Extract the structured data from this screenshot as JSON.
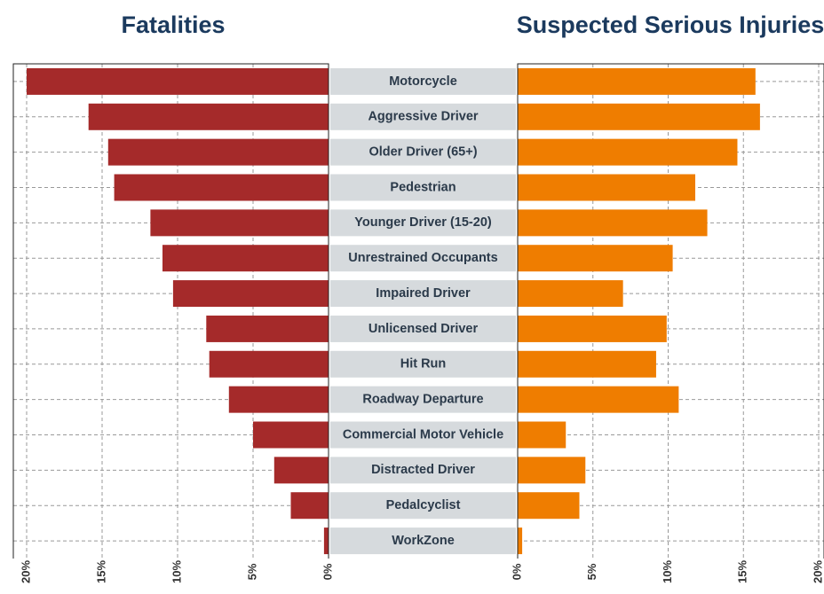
{
  "chart_data": {
    "type": "butterfly",
    "categories": [
      "Motorcycle",
      "Aggressive Driver",
      "Older Driver (65+)",
      "Pedestrian",
      "Younger Driver (15-20)",
      "Unrestrained Occupants",
      "Impaired Driver",
      "Unlicensed Driver",
      "Hit Run",
      "Roadway Departure",
      "Commercial Motor Vehicle",
      "Distracted Driver",
      "Pedalcyclist",
      "WorkZone"
    ],
    "series": [
      {
        "name": "Fatalities",
        "color": "#a52a2a",
        "values": [
          20.0,
          15.9,
          14.6,
          14.2,
          11.8,
          11.0,
          10.3,
          8.1,
          7.9,
          6.6,
          5.0,
          3.6,
          2.5,
          0.3
        ]
      },
      {
        "name": "Suspected Serious Injuries",
        "color": "#ef7d00",
        "values": [
          15.8,
          16.1,
          14.6,
          11.8,
          12.6,
          10.3,
          7.0,
          9.9,
          9.2,
          10.7,
          3.2,
          4.5,
          4.1,
          0.3
        ]
      }
    ],
    "xlim": [
      0,
      20
    ],
    "xticks": [
      {
        "value": 0,
        "label": "0%"
      },
      {
        "value": 5,
        "label": "5%"
      },
      {
        "value": 10,
        "label": "10%"
      },
      {
        "value": 15,
        "label": "15%"
      },
      {
        "value": 20,
        "label": "20%"
      }
    ],
    "grid": true
  }
}
